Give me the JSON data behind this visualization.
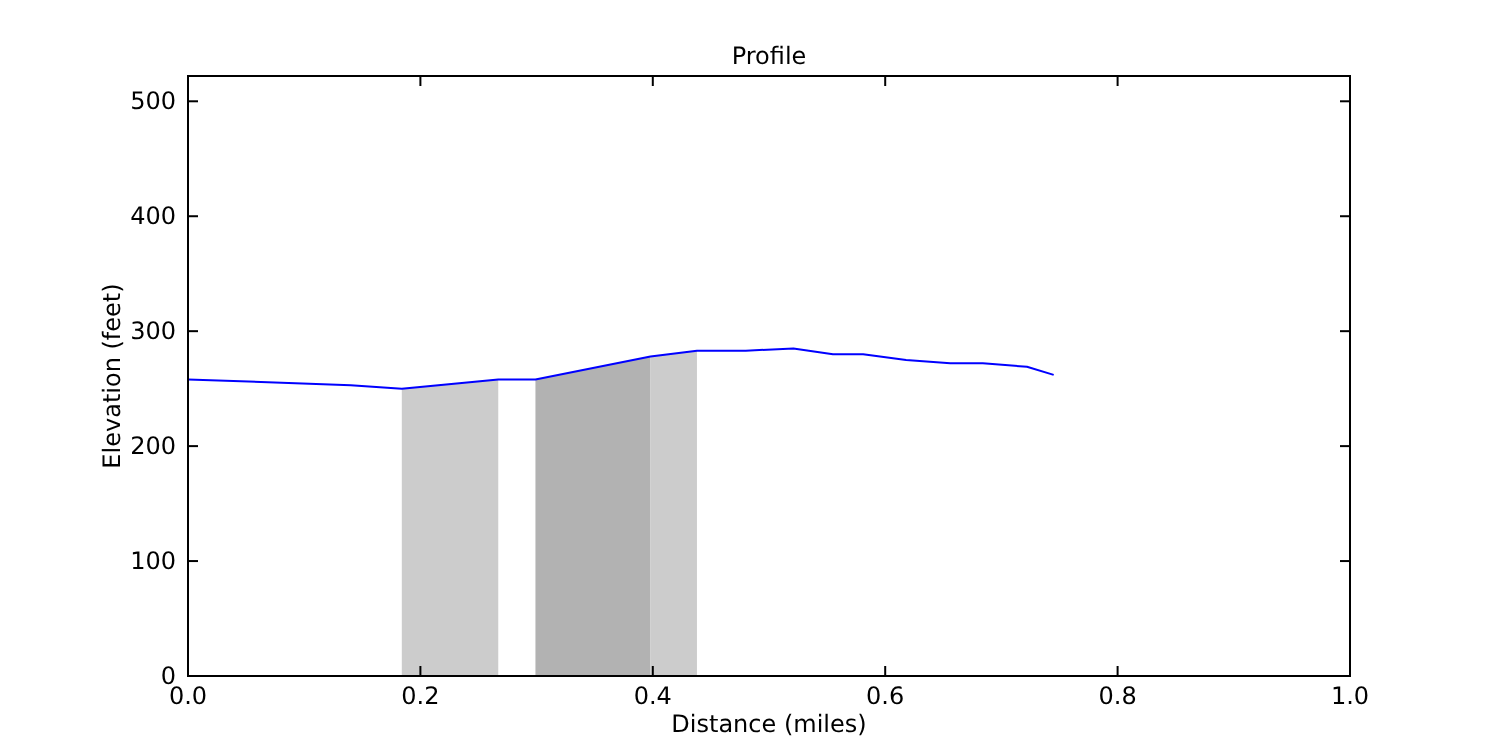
{
  "chart_data": {
    "type": "line",
    "title": "Profile",
    "xlabel": "Distance (miles)",
    "ylabel": "Elevation (feet)",
    "xlim": [
      0,
      1
    ],
    "ylim": [
      0,
      522
    ],
    "xticks": [
      {
        "value": 0,
        "label": "0.0"
      },
      {
        "value": 0.2,
        "label": "0.2"
      },
      {
        "value": 0.4,
        "label": "0.4"
      },
      {
        "value": 0.6,
        "label": "0.6"
      },
      {
        "value": 0.8,
        "label": "0.8"
      },
      {
        "value": 1,
        "label": "1.0"
      }
    ],
    "yticks": [
      0,
      100,
      200,
      300,
      400,
      500
    ],
    "grid": false,
    "marker": "none",
    "line_style": "solid",
    "series": [
      {
        "type": "area",
        "color": "#cccccc",
        "x": [
          0.184,
          0.267
        ],
        "values": [
          250,
          258
        ]
      },
      {
        "type": "area",
        "color": "#b2b2b2",
        "x": [
          0.299,
          0.398
        ],
        "values": [
          258,
          278
        ]
      },
      {
        "type": "area",
        "color": "#cccccc",
        "x": [
          0.398,
          0.438
        ],
        "values": [
          278,
          283
        ]
      },
      {
        "color": "#0000ff",
        "x": [
          0,
          0.14,
          0.184,
          0.267,
          0.299,
          0.398,
          0.438,
          0.48,
          0.521,
          0.555,
          0.581,
          0.618,
          0.656,
          0.684,
          0.722,
          0.745
        ],
        "values": [
          258,
          253,
          250,
          258,
          258,
          278,
          283,
          283,
          285,
          280,
          280,
          275,
          272,
          272,
          269,
          262
        ]
      }
    ]
  }
}
